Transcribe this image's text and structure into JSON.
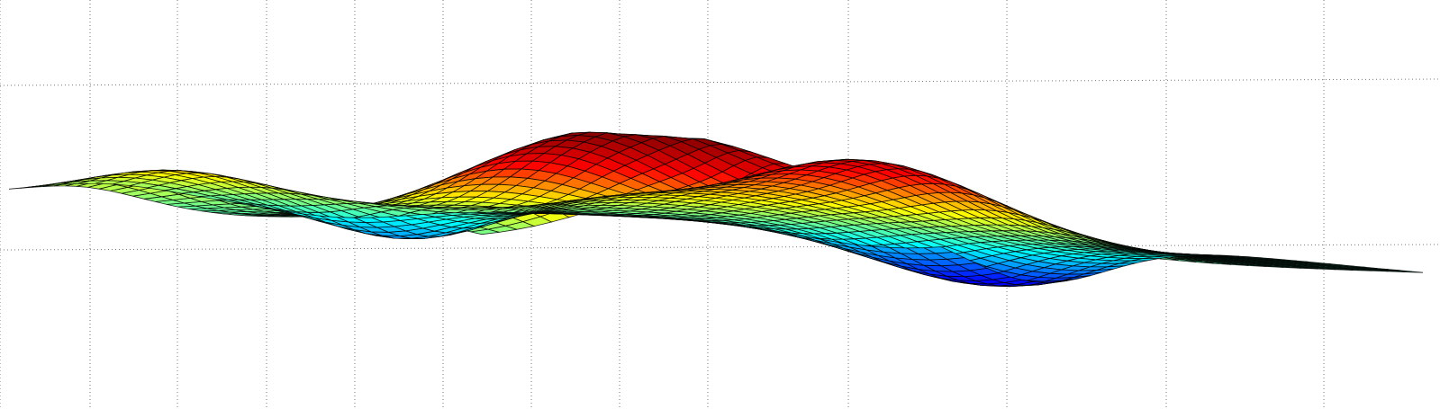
{
  "chart_data": {
    "type": "surface",
    "title": "",
    "xlabel": "",
    "ylabel": "",
    "zlabel": "",
    "grid": true,
    "colormap": "jet",
    "colormap_stops": [
      "#00008f",
      "#0000ff",
      "#00ffff",
      "#ffff00",
      "#ff0000",
      "#800000"
    ],
    "edge_color": "#000000",
    "mesh_resolution": [
      54,
      42
    ],
    "x_range": [
      0,
      1
    ],
    "y_range": [
      0,
      1
    ],
    "z_range": [
      -1,
      1
    ]
  }
}
